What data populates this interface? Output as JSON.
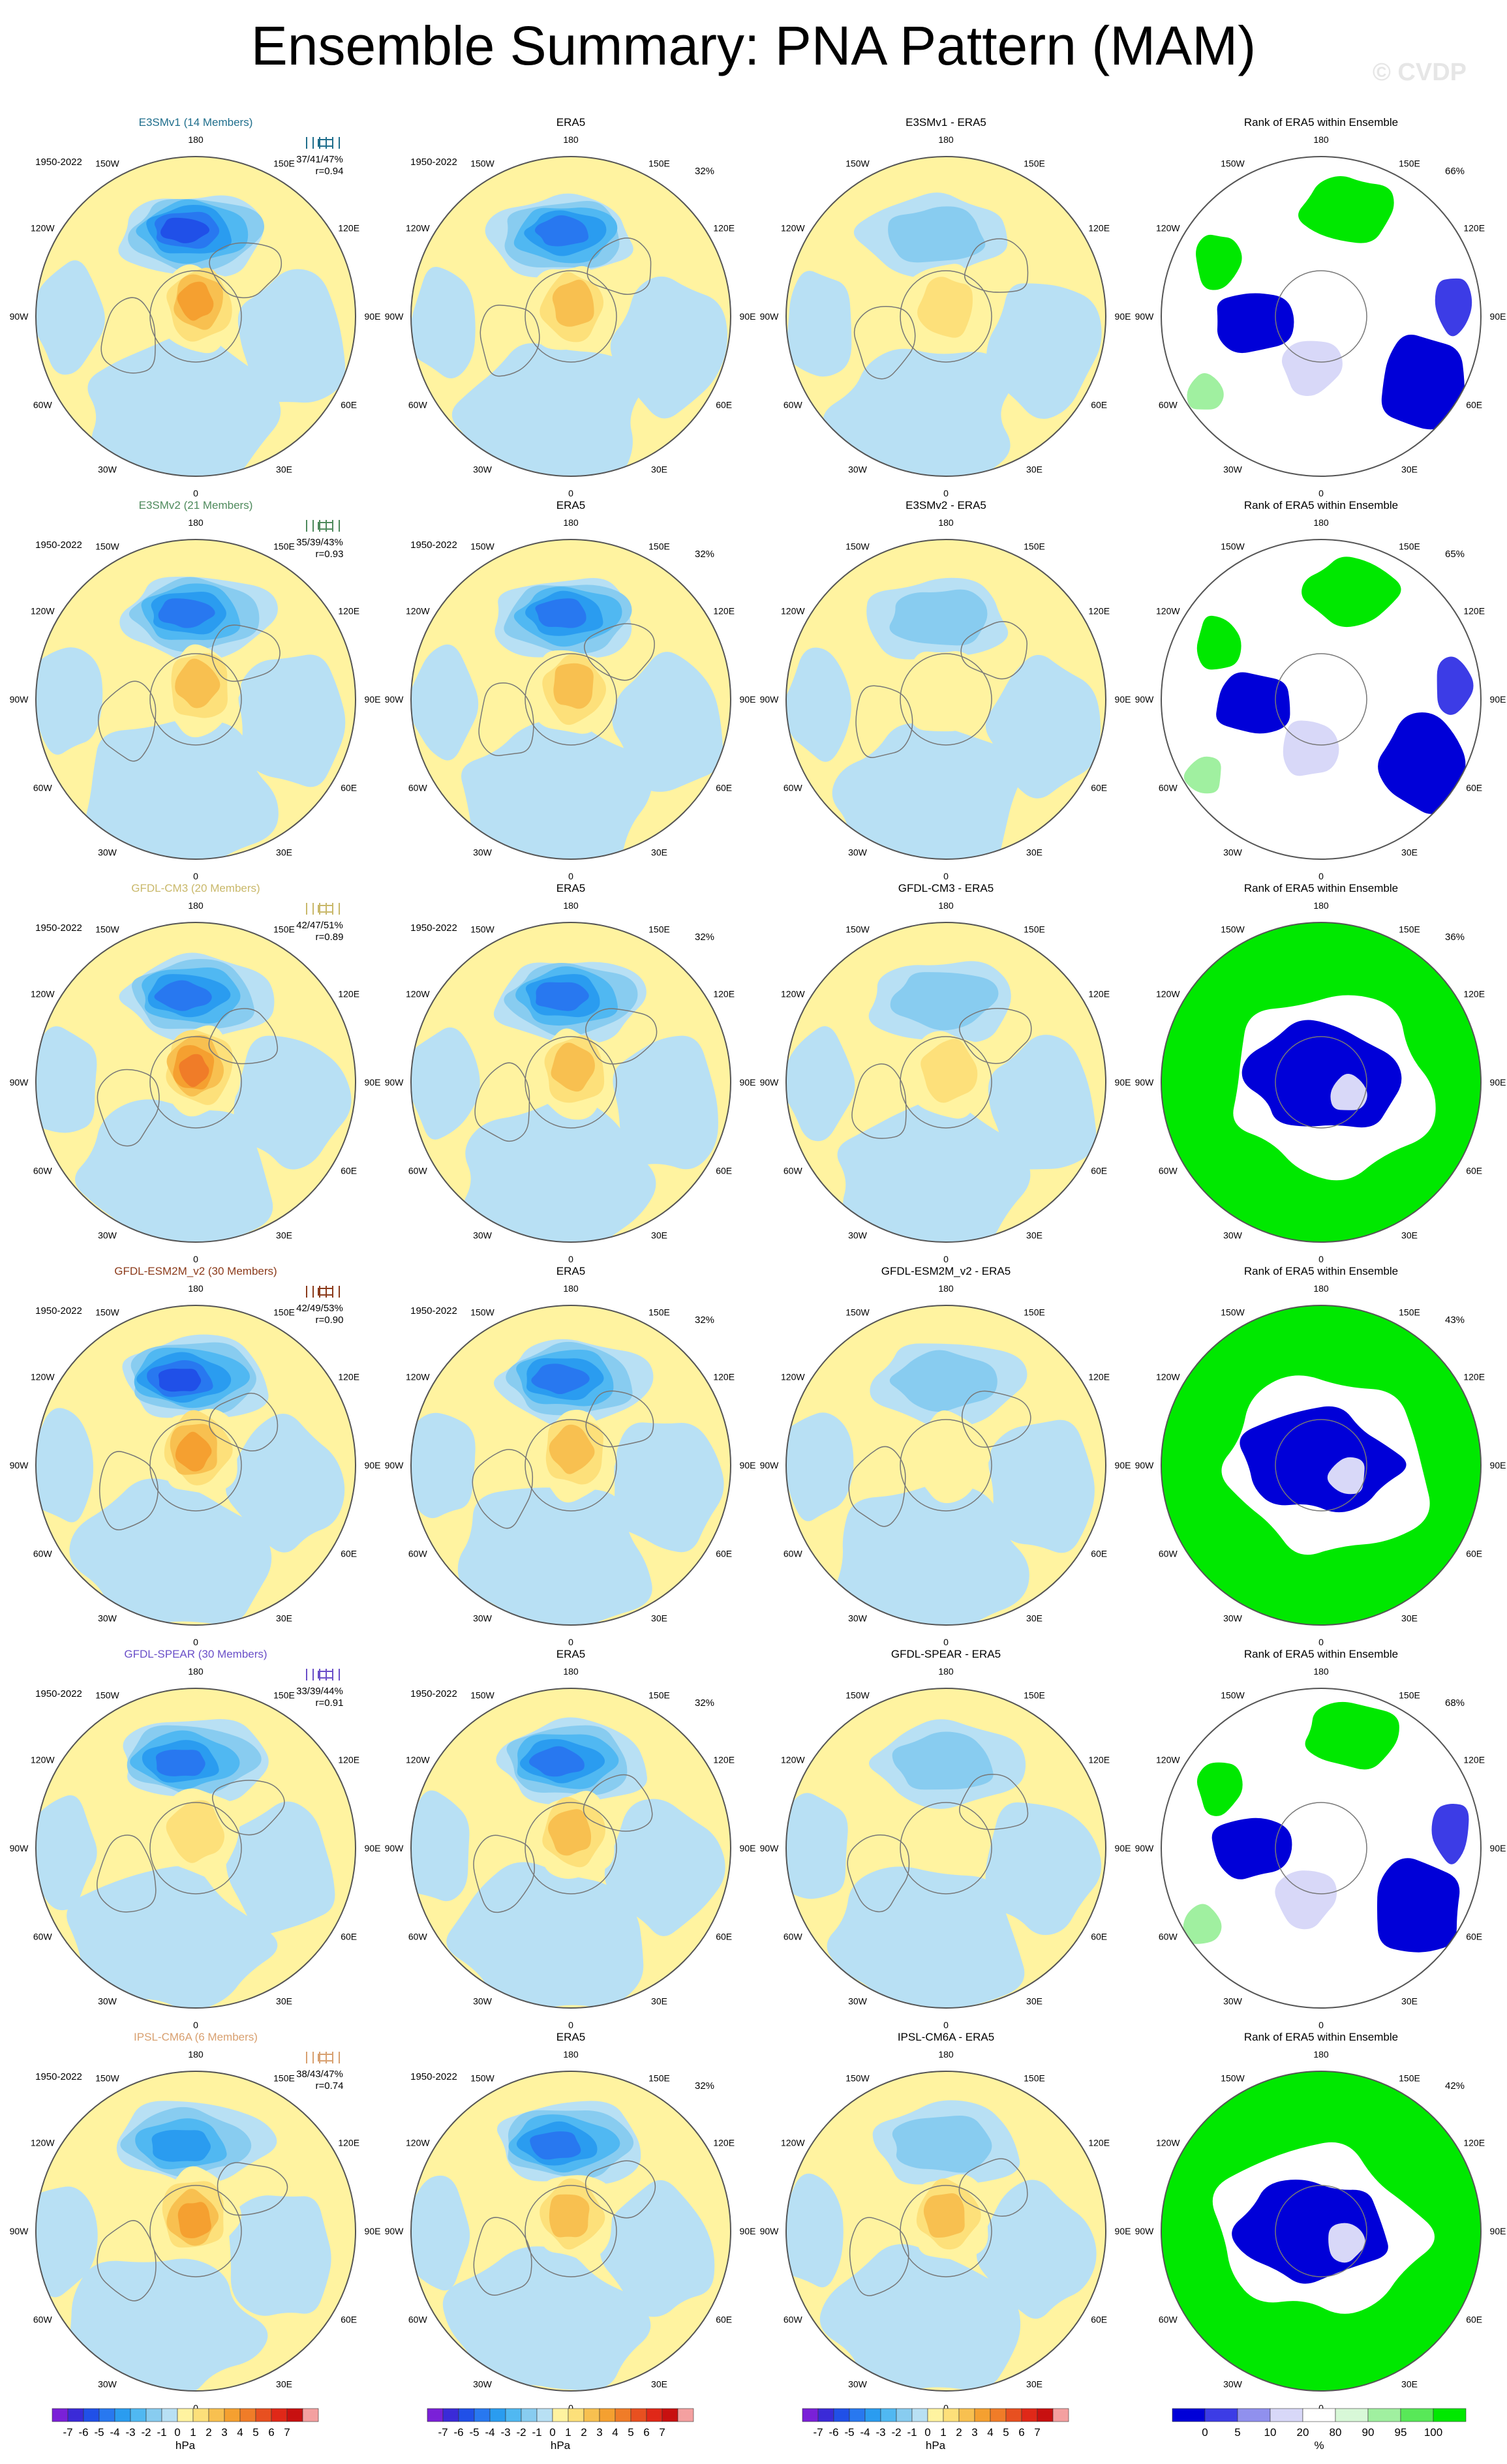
{
  "title": "Ensemble Summary: PNA Pattern (MAM)",
  "watermark": "© CVDP",
  "chart_data": {
    "type": "heatmap",
    "projection": "north polar stereographic",
    "lon_labels": [
      "180",
      "150E",
      "120E",
      "90E",
      "60E",
      "30E",
      "0",
      "30W",
      "60W",
      "90W",
      "120W",
      "150W"
    ],
    "period": "1950-2022",
    "rows": [
      {
        "model": "E3SMv1 (14 Members)",
        "model_color": "#1f6e8c",
        "stats": "37/41/47%",
        "r": "r=0.94",
        "obs_pct": "32%",
        "diff_title": "E3SMv1 - ERA5",
        "rank_pct": "66%",
        "low_strength": 6,
        "high_strength": 4,
        "diff_low": 2,
        "diff_high": 2,
        "rank_pattern": "mixed"
      },
      {
        "model": "E3SMv2 (21 Members)",
        "model_color": "#4e8a5c",
        "stats": "35/39/43%",
        "r": "r=0.93",
        "obs_pct": "32%",
        "diff_title": "E3SMv2 - ERA5",
        "rank_pct": "65%",
        "low_strength": 5,
        "high_strength": 3,
        "diff_low": 2,
        "diff_high": 1,
        "rank_pattern": "mixed"
      },
      {
        "model": "GFDL-CM3 (20 Members)",
        "model_color": "#c9b86a",
        "stats": "42/47/51%",
        "r": "r=0.89",
        "obs_pct": "32%",
        "diff_title": "GFDL-CM3 - ERA5",
        "rank_pct": "36%",
        "low_strength": 5,
        "high_strength": 5,
        "diff_low": 2,
        "diff_high": 2,
        "rank_pattern": "ring"
      },
      {
        "model": "GFDL-ESM2M_v2 (30 Members)",
        "model_color": "#8b3a1a",
        "stats": "42/49/53%",
        "r": "r=0.90",
        "obs_pct": "32%",
        "diff_title": "GFDL-ESM2M_v2 - ERA5",
        "rank_pct": "43%",
        "low_strength": 6,
        "high_strength": 4,
        "diff_low": 2,
        "diff_high": 1,
        "rank_pattern": "ring"
      },
      {
        "model": "GFDL-SPEAR (30 Members)",
        "model_color": "#6a4fc8",
        "stats": "33/39/44%",
        "r": "r=0.91",
        "obs_pct": "32%",
        "diff_title": "GFDL-SPEAR - ERA5",
        "rank_pct": "68%",
        "low_strength": 5,
        "high_strength": 2,
        "diff_low": 2,
        "diff_high": 0,
        "rank_pattern": "mixed"
      },
      {
        "model": "IPSL-CM6A (6 Members)",
        "model_color": "#d8a070",
        "stats": "38/43/47%",
        "r": "r=0.74",
        "obs_pct": "32%",
        "diff_title": "IPSL-CM6A - ERA5",
        "rank_pct": "42%",
        "low_strength": 4,
        "high_strength": 4,
        "diff_low": 2,
        "diff_high": 3,
        "rank_pattern": "ring"
      }
    ],
    "obs_title": "ERA5",
    "rank_title": "Rank of ERA5 within Ensemble",
    "hpa_levels": [
      "-7",
      "-6",
      "-5",
      "-4",
      "-3",
      "-2",
      "-1",
      "0",
      "1",
      "2",
      "3",
      "4",
      "5",
      "6",
      "7"
    ],
    "hpa_colors": [
      "#7a20d8",
      "#3a2ad8",
      "#2050e8",
      "#2878f0",
      "#2a9cf0",
      "#50b8f2",
      "#88ccf0",
      "#b8e0f4",
      "#fff3a0",
      "#fde07a",
      "#f8c050",
      "#f5a030",
      "#f07c28",
      "#e85020",
      "#e02818",
      "#c81010",
      "#f4a0a0"
    ],
    "hpa_unit": "hPa",
    "pct_levels": [
      "0",
      "5",
      "10",
      "20",
      "80",
      "90",
      "95",
      "100"
    ],
    "pct_colors": [
      "#0000d8",
      "#3c3ce6",
      "#9090ee",
      "#d8d8f8",
      "#ffffff",
      "#d8f8d8",
      "#a0f0a0",
      "#58e858",
      "#00e800"
    ],
    "pct_unit": "%"
  }
}
